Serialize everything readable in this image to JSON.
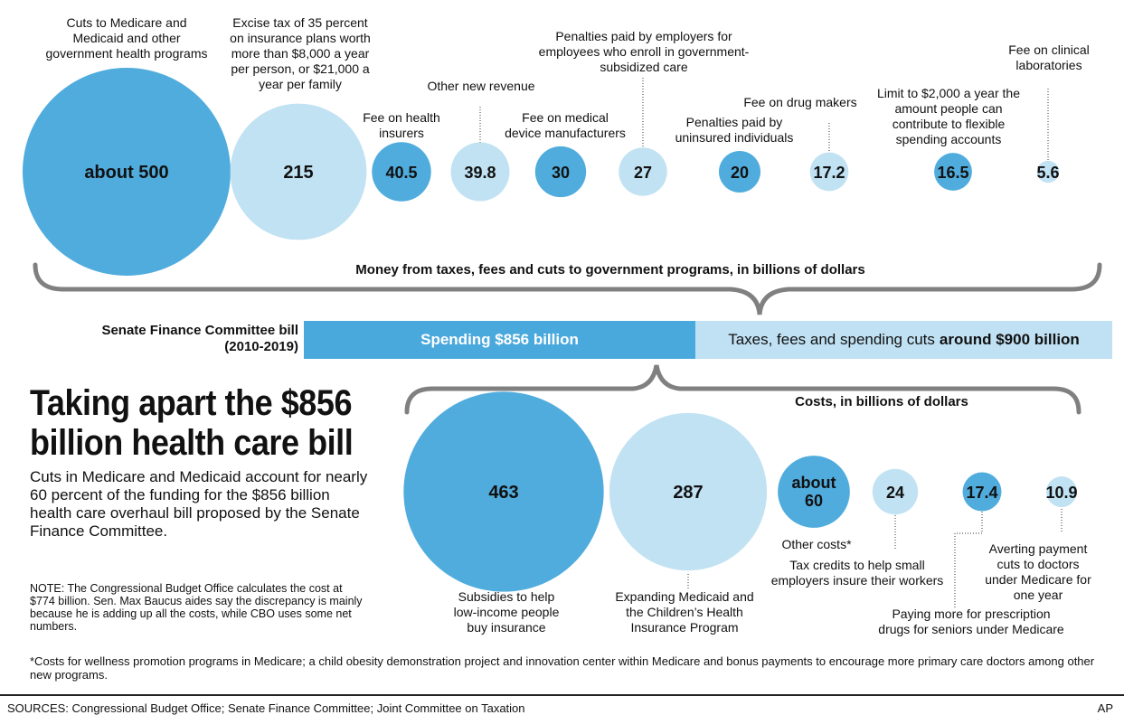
{
  "title": "Taking apart the $856 billion health care bill",
  "subtitle": "Cuts in Medicare and Medicaid account for nearly 60 percent of the funding for the $856 billion health care overhaul bill proposed by the Senate Finance Committee.",
  "bar": {
    "label_line1": "Senate Finance Committee bill",
    "label_line2": "(2010-2019)",
    "spending_label": "Spending $856 billion",
    "revenue_label_prefix": "Taxes, fees and spending cuts",
    "revenue_label_bold": "around $900 billion"
  },
  "note": "NOTE: The Congressional Budget Office calculates the cost at $774 billion. Sen. Max Baucus aides say the discrepancy is mainly because he is adding up all the costs, while CBO uses some net numbers.",
  "footnote": "*Costs for wellness promotion programs in Medicare; a child obesity demonstration project and innovation center within Medicare and bonus payments to encourage more primary care doctors among other new programs.",
  "sources": "SOURCES: Congressional Budget Office; Senate Finance Committee; Joint Committee on Taxation",
  "credit": "AP",
  "colors": {
    "dark_blue": "#4aa9dc",
    "light_blue": "#bfe1f3",
    "brace": "#808080"
  },
  "chart_data": [
    {
      "type": "bubble",
      "title": "Money from taxes, fees and cuts to government programs, in billions of dollars",
      "items": [
        {
          "value": 500,
          "value_label": "about 500",
          "label": "Cuts to Medicare and Medicaid and other government health programs",
          "label_lines": [
            "Cuts to Medicare and",
            "Medicaid and other",
            "government health programs"
          ],
          "color": "dark"
        },
        {
          "value": 215,
          "value_label": "215",
          "label": "Excise tax of 35 percent on insurance plans worth more than $8,000 a year per person, or $21,000 a year per family",
          "label_lines": [
            "Excise tax of 35 percent",
            "on insurance plans worth",
            "more than $8,000 a year",
            "per person, or $21,000 a",
            "year per family"
          ],
          "color": "light"
        },
        {
          "value": 40.5,
          "value_label": "40.5",
          "label": "Fee on health insurers",
          "label_lines": [
            "Fee on health",
            "insurers"
          ],
          "color": "dark"
        },
        {
          "value": 39.8,
          "value_label": "39.8",
          "label": "Other new revenue",
          "label_lines": [
            "Other new revenue"
          ],
          "color": "light"
        },
        {
          "value": 30,
          "value_label": "30",
          "label": "Fee on medical device manufacturers",
          "label_lines": [
            "Fee on medical",
            "device manufacturers"
          ],
          "color": "dark"
        },
        {
          "value": 27,
          "value_label": "27",
          "label": "Penalties paid by employers for employees who enroll in government-subsidized care",
          "label_lines": [
            "Penalties paid by employers for",
            "employees who enroll in government-",
            "subsidized care"
          ],
          "color": "light"
        },
        {
          "value": 20,
          "value_label": "20",
          "label": "Penalties paid by uninsured individuals",
          "label_lines": [
            "Penalties paid by",
            "uninsured individuals"
          ],
          "color": "dark"
        },
        {
          "value": 17.2,
          "value_label": "17.2",
          "label": "Fee on drug makers",
          "label_lines": [
            "Fee on drug makers"
          ],
          "color": "light"
        },
        {
          "value": 16.5,
          "value_label": "16.5",
          "label": "Limit to $2,000 a year the amount people can contribute to flexible spending accounts",
          "label_lines": [
            "Limit to $2,000 a year the",
            "amount people can",
            "contribute to flexible",
            "spending accounts"
          ],
          "color": "dark"
        },
        {
          "value": 5.6,
          "value_label": "5.6",
          "label": "Fee on clinical laboratories",
          "label_lines": [
            "Fee on clinical",
            "laboratories"
          ],
          "color": "light"
        }
      ]
    },
    {
      "type": "bubble",
      "title": "Costs, in billions of dollars",
      "items": [
        {
          "value": 463,
          "value_label": "463",
          "label": "Subsidies to help low-income people buy insurance",
          "label_lines": [
            "Subsidies to help",
            "low-income people",
            "buy insurance"
          ],
          "color": "dark"
        },
        {
          "value": 287,
          "value_label": "287",
          "label": "Expanding Medicaid and the Children’s Health Insurance Program",
          "label_lines": [
            "Expanding Medicaid and",
            "the Children’s Health",
            "Insurance Program"
          ],
          "color": "light"
        },
        {
          "value": 60,
          "value_label": "about 60",
          "label": "Other costs*",
          "label_lines": [
            "Other costs*"
          ],
          "color": "dark"
        },
        {
          "value": 24,
          "value_label": "24",
          "label": "Tax credits to help small employers insure their workers",
          "label_lines": [
            "Tax credits to help small",
            "employers insure their workers"
          ],
          "color": "light"
        },
        {
          "value": 17.4,
          "value_label": "17.4",
          "label": "Paying more for prescription drugs for seniors under Medicare",
          "label_lines": [
            "Paying more for prescription",
            "drugs for seniors under Medicare"
          ],
          "color": "dark"
        },
        {
          "value": 10.9,
          "value_label": "10.9",
          "label": "Averting payment cuts to doctors under Medicare for one year",
          "label_lines": [
            "Averting payment",
            "cuts to doctors",
            "under Medicare for",
            "one year"
          ],
          "color": "light"
        }
      ]
    }
  ]
}
